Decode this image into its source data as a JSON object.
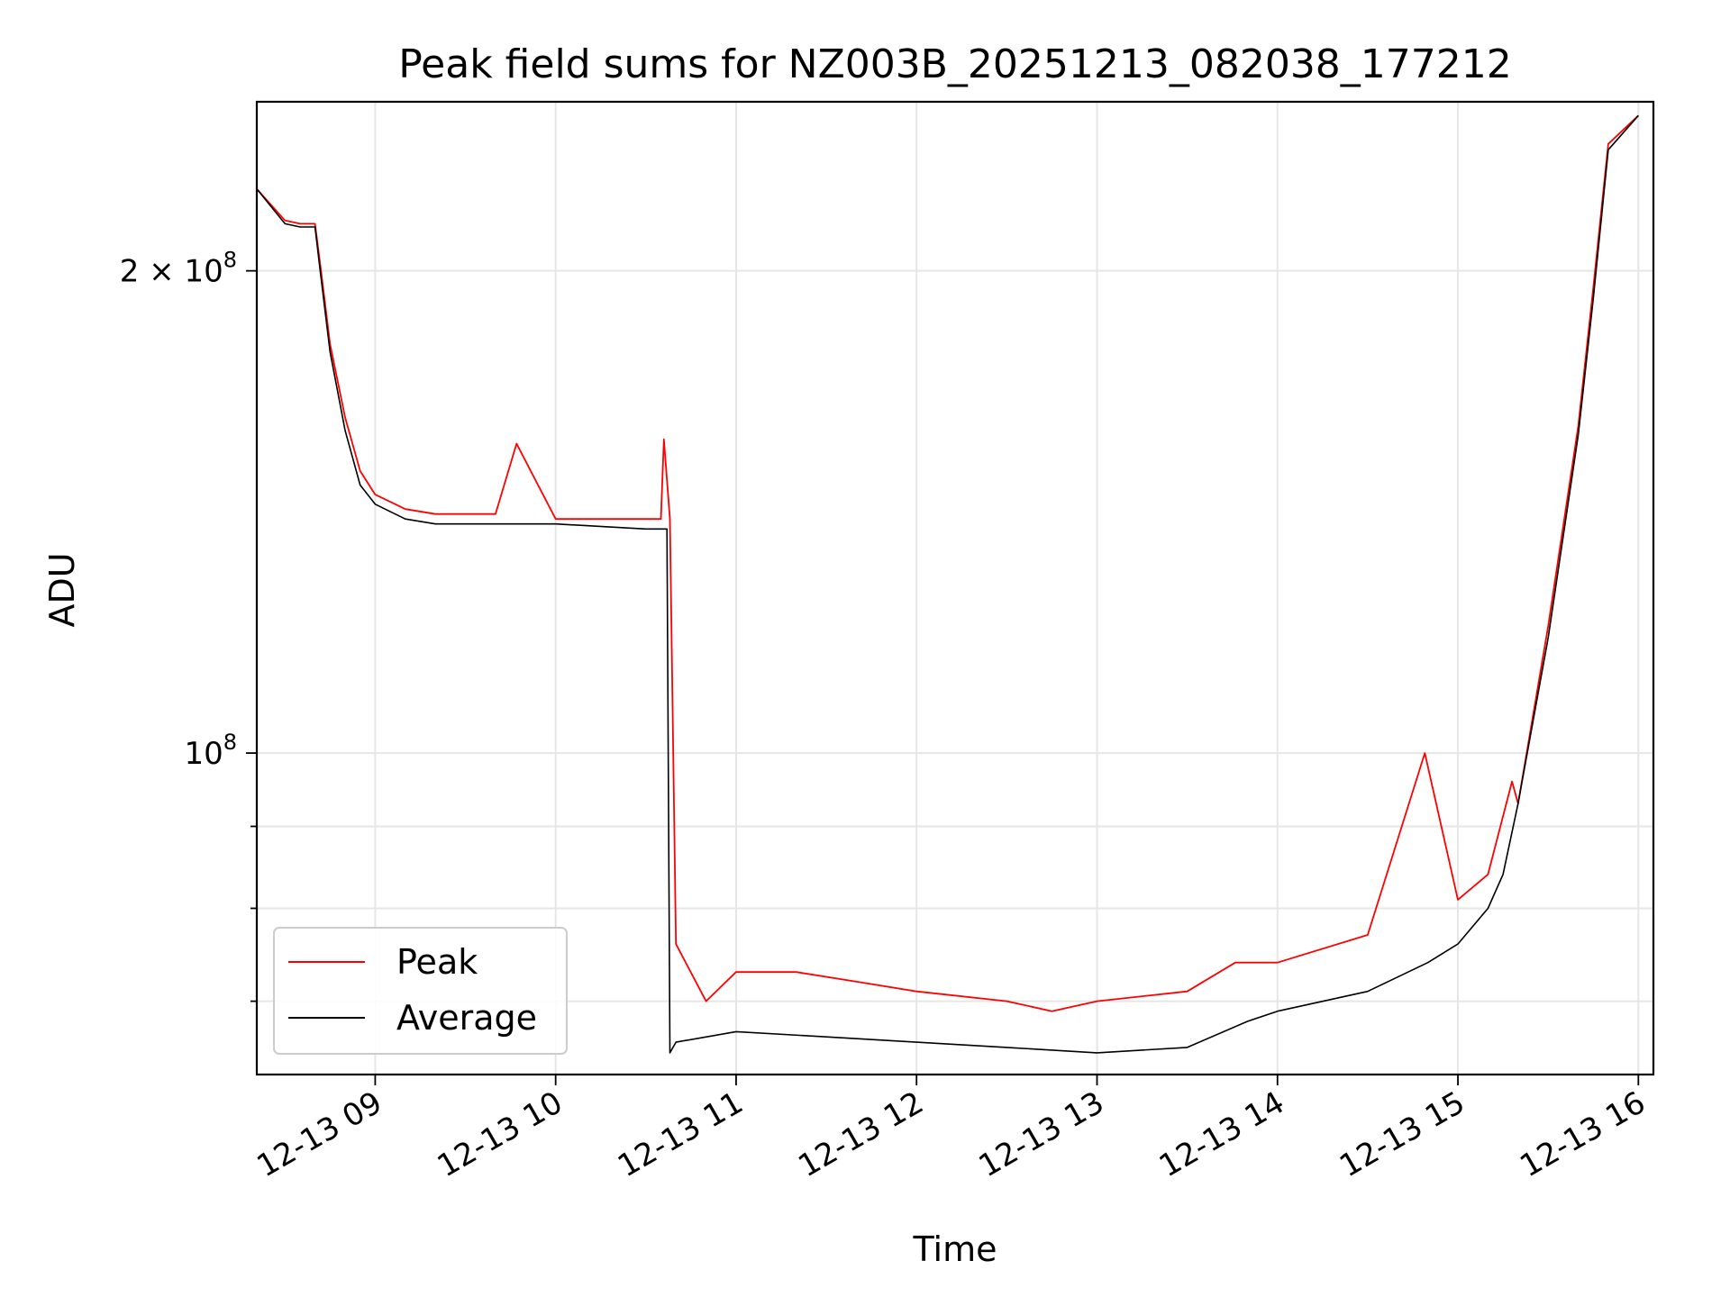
{
  "chart_data": {
    "type": "line",
    "title": "Peak field sums for NZ003B_20251213_082038_177212",
    "xlabel": "Time",
    "ylabel": "ADU",
    "yscale": "log",
    "xlim": [
      "2025-12-13T08:20:38",
      "2025-12-13T16:05:00"
    ],
    "ylim": [
      63000000,
      255000000
    ],
    "x_ticks": [
      {
        "x": "2025-12-13T09:00",
        "label": "12-13 09"
      },
      {
        "x": "2025-12-13T10:00",
        "label": "12-13 10"
      },
      {
        "x": "2025-12-13T11:00",
        "label": "12-13 11"
      },
      {
        "x": "2025-12-13T12:00",
        "label": "12-13 12"
      },
      {
        "x": "2025-12-13T13:00",
        "label": "12-13 13"
      },
      {
        "x": "2025-12-13T14:00",
        "label": "12-13 14"
      },
      {
        "x": "2025-12-13T15:00",
        "label": "12-13 15"
      },
      {
        "x": "2025-12-13T16:00",
        "label": "12-13 16"
      }
    ],
    "y_major_ticks": [
      {
        "value": 100000000,
        "base": "10",
        "exp": "8"
      },
      {
        "value": 200000000,
        "base": "2 × 10",
        "exp": "8"
      }
    ],
    "y_minor_ticks": [
      70000000,
      80000000,
      90000000
    ],
    "grid": true,
    "legend_position": "lower-left",
    "colors": {
      "peak": "#ff0000",
      "average": "#000000"
    },
    "series": [
      {
        "name": "Peak",
        "color": "#ff0000",
        "x": [
          "2025-12-13T08:20:38",
          "2025-12-13T08:30",
          "2025-12-13T08:35",
          "2025-12-13T08:40",
          "2025-12-13T08:42",
          "2025-12-13T08:45",
          "2025-12-13T08:50",
          "2025-12-13T08:55",
          "2025-12-13T09:00",
          "2025-12-13T09:10",
          "2025-12-13T09:20",
          "2025-12-13T09:40",
          "2025-12-13T09:47",
          "2025-12-13T10:00",
          "2025-12-13T10:20",
          "2025-12-13T10:35",
          "2025-12-13T10:36",
          "2025-12-13T10:38",
          "2025-12-13T10:40",
          "2025-12-13T10:50",
          "2025-12-13T11:00",
          "2025-12-13T11:20",
          "2025-12-13T11:40",
          "2025-12-13T12:00",
          "2025-12-13T12:30",
          "2025-12-13T12:45",
          "2025-12-13T13:00",
          "2025-12-13T13:30",
          "2025-12-13T13:46",
          "2025-12-13T14:00",
          "2025-12-13T14:30",
          "2025-12-13T14:49",
          "2025-12-13T15:00",
          "2025-12-13T15:10",
          "2025-12-13T15:18",
          "2025-12-13T15:20",
          "2025-12-13T15:30",
          "2025-12-13T15:40",
          "2025-12-13T15:45",
          "2025-12-13T15:50",
          "2025-12-13T16:00"
        ],
        "y": [
          225000000,
          215000000,
          214000000,
          214000000,
          200000000,
          180000000,
          162000000,
          150000000,
          145000000,
          142000000,
          141000000,
          141000000,
          156000000,
          140000000,
          140000000,
          140000000,
          157000000,
          140000000,
          76000000,
          70000000,
          73000000,
          73000000,
          72000000,
          71000000,
          70000000,
          69000000,
          70000000,
          71000000,
          74000000,
          74000000,
          77000000,
          100000000,
          81000000,
          84000000,
          96000000,
          93000000,
          120000000,
          160000000,
          195000000,
          240000000,
          250000000
        ]
      },
      {
        "name": "Average",
        "color": "#000000",
        "x": [
          "2025-12-13T08:20:38",
          "2025-12-13T08:30",
          "2025-12-13T08:35",
          "2025-12-13T08:40",
          "2025-12-13T08:42",
          "2025-12-13T08:45",
          "2025-12-13T08:50",
          "2025-12-13T08:55",
          "2025-12-13T09:00",
          "2025-12-13T09:10",
          "2025-12-13T09:20",
          "2025-12-13T10:00",
          "2025-12-13T10:30",
          "2025-12-13T10:37",
          "2025-12-13T10:38",
          "2025-12-13T10:40",
          "2025-12-13T11:00",
          "2025-12-13T11:30",
          "2025-12-13T12:00",
          "2025-12-13T12:30",
          "2025-12-13T13:00",
          "2025-12-13T13:30",
          "2025-12-13T13:50",
          "2025-12-13T14:00",
          "2025-12-13T14:30",
          "2025-12-13T14:50",
          "2025-12-13T15:00",
          "2025-12-13T15:10",
          "2025-12-13T15:15",
          "2025-12-13T15:20",
          "2025-12-13T15:30",
          "2025-12-13T15:40",
          "2025-12-13T15:45",
          "2025-12-13T15:50",
          "2025-12-13T16:00"
        ],
        "y": [
          225000000,
          214000000,
          213000000,
          213000000,
          198000000,
          178000000,
          159000000,
          147000000,
          143000000,
          140000000,
          139000000,
          139000000,
          138000000,
          138000000,
          65000000,
          66000000,
          67000000,
          66500000,
          66000000,
          65500000,
          65000000,
          65500000,
          68000000,
          69000000,
          71000000,
          74000000,
          76000000,
          80000000,
          84000000,
          93000000,
          118000000,
          158000000,
          192000000,
          238000000,
          250000000
        ]
      }
    ],
    "chart_annotations": [],
    "legend": {
      "peak_label": "Peak",
      "average_label": "Average"
    }
  }
}
